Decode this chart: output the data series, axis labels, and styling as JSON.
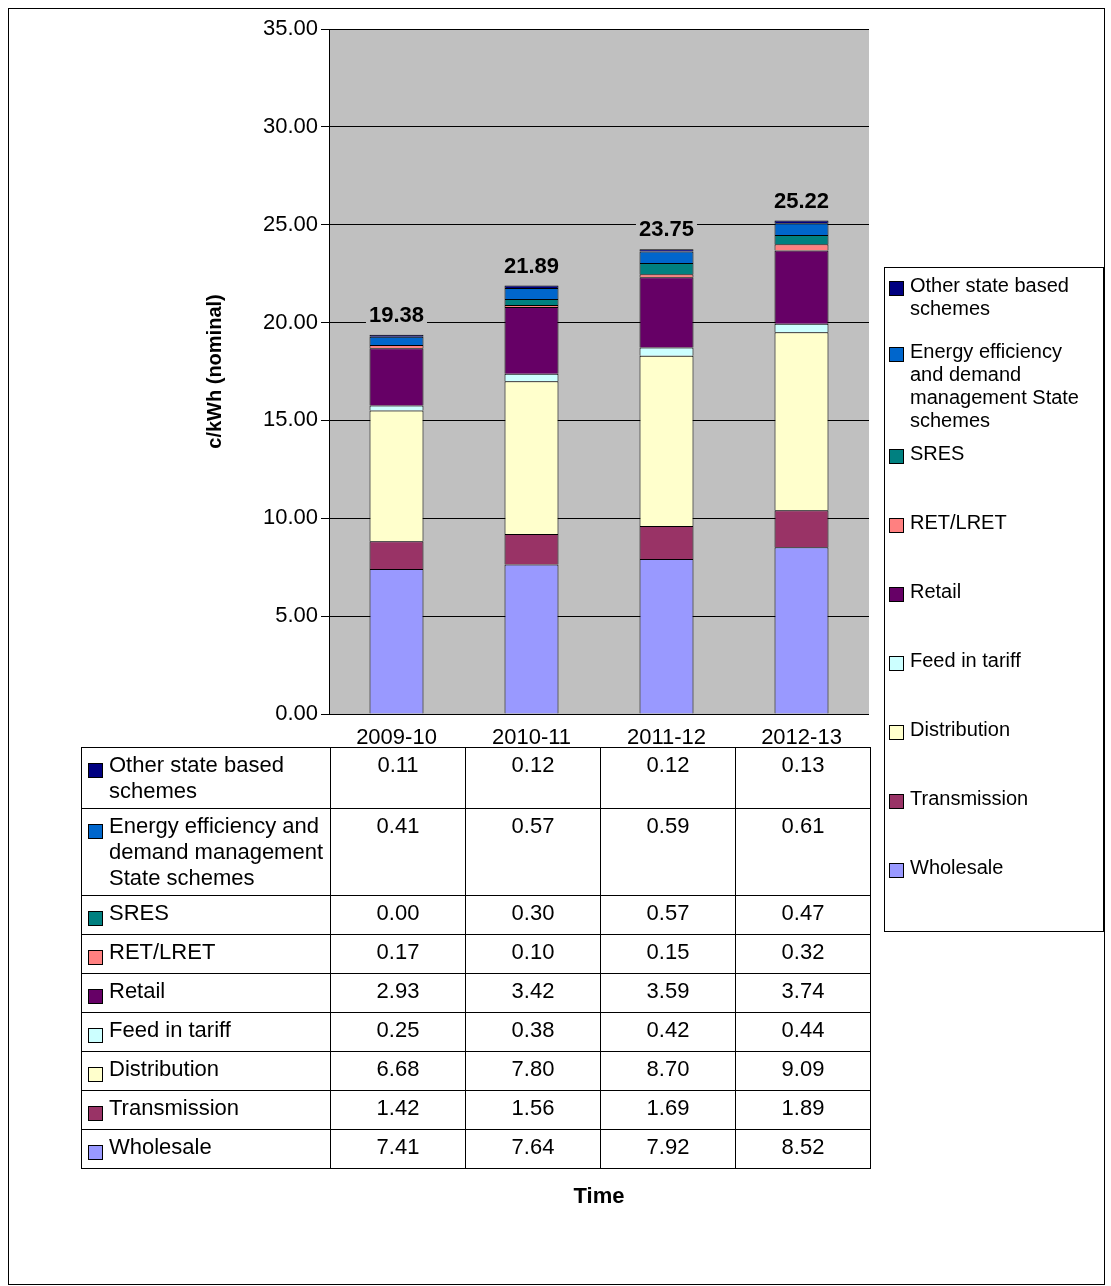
{
  "chart_data": {
    "type": "bar",
    "stacked": true,
    "annotations": [
      "Time"
    ],
    "ylabel": "c/kWh (nominal)",
    "categories": [
      "2009-10",
      "2010-11",
      "2011-12",
      "2012-13"
    ],
    "series": [
      {
        "name": "Wholesale",
        "color": "#9999ff",
        "values": [
          7.41,
          7.64,
          7.92,
          8.52
        ],
        "value_labels": [
          "7.41",
          "7.64",
          "7.92",
          "8.52"
        ]
      },
      {
        "name": "Transmission",
        "color": "#993366",
        "values": [
          1.42,
          1.56,
          1.69,
          1.89
        ],
        "value_labels": [
          "1.42",
          "1.56",
          "1.69",
          "1.89"
        ]
      },
      {
        "name": "Distribution",
        "color": "#ffffcc",
        "values": [
          6.68,
          7.8,
          8.7,
          9.09
        ],
        "value_labels": [
          "6.68",
          "7.80",
          "8.70",
          "9.09"
        ]
      },
      {
        "name": "Feed in tariff",
        "color": "#ccffff",
        "values": [
          0.25,
          0.38,
          0.42,
          0.44
        ],
        "value_labels": [
          "0.25",
          "0.38",
          "0.42",
          "0.44"
        ]
      },
      {
        "name": "Retail",
        "color": "#660066",
        "values": [
          2.93,
          3.42,
          3.59,
          3.74
        ],
        "value_labels": [
          "2.93",
          "3.42",
          "3.59",
          "3.74"
        ]
      },
      {
        "name": "RET/LRET",
        "color": "#ff8080",
        "values": [
          0.17,
          0.1,
          0.15,
          0.32
        ],
        "value_labels": [
          "0.17",
          "0.10",
          "0.15",
          "0.32"
        ]
      },
      {
        "name": "SRES",
        "color": "#008080",
        "values": [
          0,
          0.3,
          0.57,
          0.47
        ],
        "value_labels": [
          "0.00",
          "0.30",
          "0.57",
          "0.47"
        ]
      },
      {
        "name": "Energy efficiency and demand management State schemes",
        "color": "#0066cc",
        "values": [
          0.41,
          0.57,
          0.59,
          0.61
        ],
        "value_labels": [
          "0.41",
          "0.57",
          "0.59",
          "0.61"
        ]
      },
      {
        "name": "Other state based schemes",
        "color": "#000080",
        "values": [
          0.11,
          0.12,
          0.12,
          0.13
        ],
        "value_labels": [
          "0.11",
          "0.12",
          "0.12",
          "0.13"
        ]
      }
    ],
    "totals": [
      "19.38",
      "21.89",
      "23.75",
      "25.22"
    ],
    "ylim": [
      0,
      35
    ],
    "yticks": [
      {
        "value": 0,
        "label": "0.00"
      },
      {
        "value": 5,
        "label": "5.00"
      },
      {
        "value": 10,
        "label": "10.00"
      },
      {
        "value": 15,
        "label": "15.00"
      },
      {
        "value": 20,
        "label": "20.00"
      },
      {
        "value": 25,
        "label": "25.00"
      },
      {
        "value": 30,
        "label": "30.00"
      },
      {
        "value": 35,
        "label": "35.00"
      }
    ],
    "grid": "y",
    "legend": "right"
  }
}
